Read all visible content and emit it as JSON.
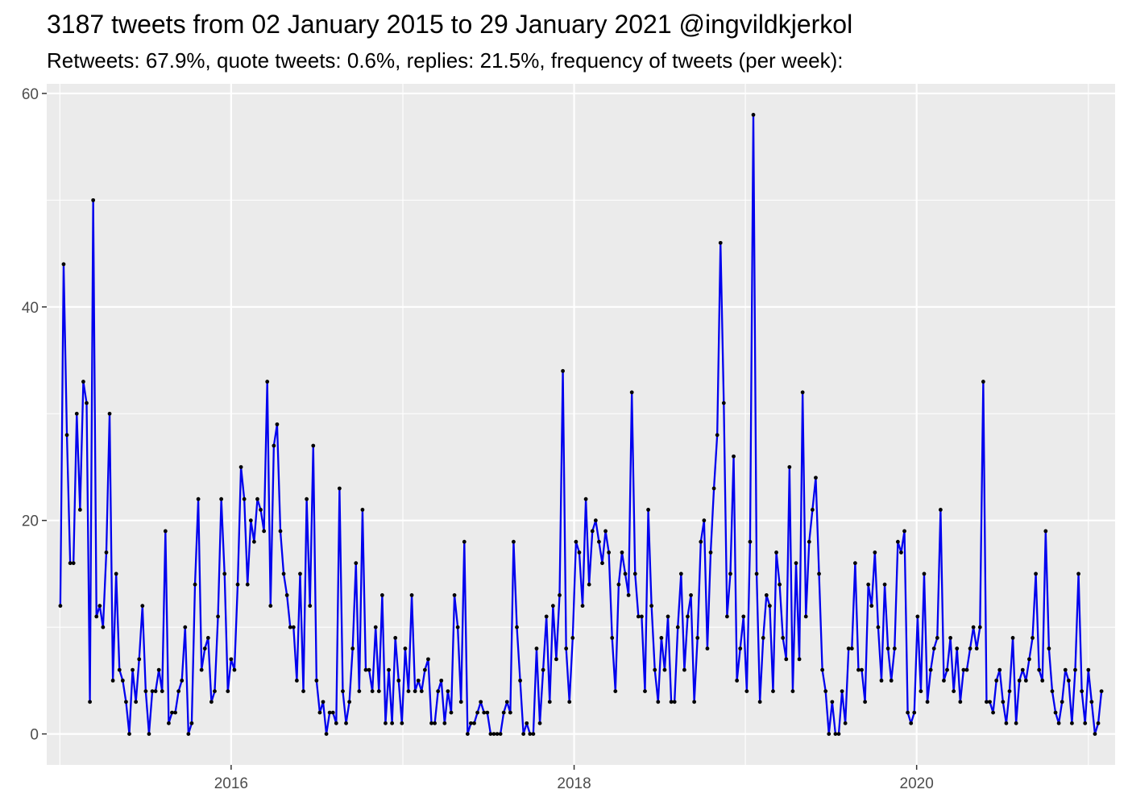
{
  "chart_data": {
    "type": "line",
    "title": "3187 tweets from 02 January 2015 to 29 January 2021 @ingvildkjerkol",
    "subtitle": "Retweets: 67.9%, quote tweets: 0.6%, replies: 21.5%, frequency of tweets (per week):",
    "xlabel": "",
    "ylabel": "",
    "x_ticks": [
      "2016",
      "2018",
      "2020"
    ],
    "y_ticks": [
      0,
      20,
      40,
      60
    ],
    "xlim": [
      "2014-12-04",
      "2021-02-27"
    ],
    "ylim": [
      -2.9,
      60.9
    ],
    "grid": true,
    "line_color": "#0000ee",
    "point_color": "#000000",
    "panel_color": "#ebebeb",
    "start_date": "2015-01-02",
    "interval_days": 7,
    "values": [
      12,
      44,
      28,
      16,
      16,
      30,
      21,
      33,
      31,
      3,
      50,
      11,
      12,
      10,
      17,
      30,
      5,
      15,
      6,
      5,
      3,
      0,
      6,
      3,
      7,
      12,
      4,
      0,
      4,
      4,
      6,
      4,
      19,
      1,
      2,
      2,
      4,
      5,
      10,
      0,
      1,
      14,
      22,
      6,
      8,
      9,
      3,
      4,
      11,
      22,
      15,
      4,
      7,
      6,
      14,
      25,
      22,
      14,
      20,
      18,
      22,
      21,
      19,
      33,
      12,
      27,
      29,
      19,
      15,
      13,
      10,
      10,
      5,
      15,
      4,
      22,
      12,
      27,
      5,
      2,
      3,
      0,
      2,
      2,
      1,
      23,
      4,
      1,
      3,
      8,
      16,
      4,
      21,
      6,
      6,
      4,
      10,
      4,
      13,
      1,
      6,
      1,
      9,
      5,
      1,
      8,
      4,
      13,
      4,
      5,
      4,
      6,
      7,
      1,
      1,
      4,
      5,
      1,
      4,
      2,
      13,
      10,
      3,
      18,
      0,
      1,
      1,
      2,
      3,
      2,
      2,
      0,
      0,
      0,
      0,
      2,
      3,
      2,
      18,
      10,
      5,
      0,
      1,
      0,
      0,
      8,
      1,
      6,
      11,
      3,
      12,
      7,
      13,
      34,
      8,
      3,
      9,
      18,
      17,
      12,
      22,
      14,
      19,
      20,
      18,
      16,
      19,
      17,
      9,
      4,
      14,
      17,
      15,
      13,
      32,
      15,
      11,
      11,
      4,
      21,
      12,
      6,
      3,
      9,
      6,
      11,
      3,
      3,
      10,
      15,
      6,
      11,
      13,
      3,
      9,
      18,
      20,
      8,
      17,
      23,
      28,
      46,
      31,
      11,
      15,
      26,
      5,
      8,
      11,
      4,
      18,
      58,
      15,
      3,
      9,
      13,
      12,
      4,
      17,
      14,
      9,
      7,
      25,
      4,
      16,
      7,
      32,
      11,
      18,
      21,
      24,
      15,
      6,
      4,
      0,
      3,
      0,
      0,
      4,
      1,
      8,
      8,
      16,
      6,
      6,
      3,
      14,
      12,
      17,
      10,
      5,
      14,
      8,
      5,
      8,
      18,
      17,
      19,
      2,
      1,
      2,
      11,
      4,
      15,
      3,
      6,
      8,
      9,
      21,
      5,
      6,
      9,
      4,
      8,
      3,
      6,
      6,
      8,
      10,
      8,
      10,
      33,
      3,
      3,
      2,
      5,
      6,
      3,
      1,
      4,
      9,
      1,
      5,
      6,
      5,
      7,
      9,
      15,
      6,
      5,
      19,
      8,
      4,
      2,
      1,
      3,
      6,
      5,
      1,
      6,
      15,
      4,
      1,
      6,
      3,
      0,
      1,
      4
    ]
  }
}
